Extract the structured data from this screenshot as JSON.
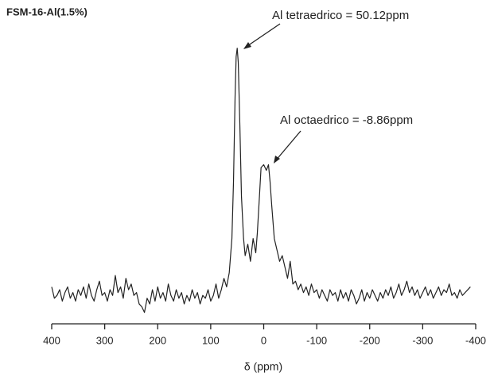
{
  "chart_data": {
    "type": "line",
    "title": "FSM-16-Al(1.5%)",
    "xlabel": "δ (ppm)",
    "color": "#222222",
    "annotations": [
      "Al tetraedrico = 50.12ppm",
      "Al octaedrico = -8.86ppm"
    ],
    "xlim": [
      400,
      -400
    ],
    "ylim": [
      0,
      100
    ],
    "xticks": [
      400,
      300,
      200,
      100,
      0,
      -100,
      -200,
      -300,
      -400
    ],
    "x": [
      400,
      395,
      390,
      385,
      380,
      375,
      370,
      365,
      360,
      355,
      350,
      345,
      340,
      335,
      330,
      325,
      320,
      315,
      310,
      305,
      300,
      295,
      290,
      285,
      280,
      275,
      270,
      265,
      260,
      255,
      250,
      245,
      240,
      235,
      230,
      225,
      220,
      215,
      210,
      205,
      200,
      195,
      190,
      185,
      180,
      175,
      170,
      165,
      160,
      155,
      150,
      145,
      140,
      135,
      130,
      125,
      120,
      115,
      110,
      105,
      100,
      95,
      90,
      85,
      80,
      75,
      70,
      65,
      60,
      57,
      54,
      52,
      50,
      48,
      45,
      42,
      38,
      35,
      30,
      25,
      20,
      15,
      12,
      8,
      5,
      0,
      -5,
      -9,
      -12,
      -15,
      -20,
      -25,
      -30,
      -35,
      -40,
      -45,
      -50,
      -55,
      -60,
      -65,
      -70,
      -75,
      -80,
      -85,
      -90,
      -95,
      -100,
      -105,
      -110,
      -115,
      -120,
      -125,
      -130,
      -135,
      -140,
      -145,
      -150,
      -155,
      -160,
      -165,
      -170,
      -175,
      -180,
      -185,
      -190,
      -195,
      -200,
      -205,
      -210,
      -215,
      -220,
      -225,
      -230,
      -235,
      -240,
      -245,
      -250,
      -255,
      -260,
      -265,
      -270,
      -275,
      -280,
      -285,
      -290,
      -295,
      -300,
      -305,
      -310,
      -315,
      -320,
      -325,
      -330,
      -335,
      -340,
      -345,
      -350,
      -355,
      -360,
      -365,
      -370,
      -375,
      -380,
      -385,
      -390
    ],
    "values": [
      13,
      9,
      10,
      12,
      8,
      11,
      13,
      9,
      11,
      8,
      12,
      10,
      13,
      9,
      14,
      10,
      8,
      12,
      15,
      10,
      11,
      8,
      12,
      10,
      17,
      11,
      13,
      9,
      16,
      12,
      14,
      10,
      11,
      7,
      6,
      4,
      9,
      7,
      12,
      8,
      13,
      9,
      11,
      8,
      14,
      10,
      8,
      12,
      9,
      11,
      7,
      10,
      8,
      12,
      9,
      11,
      7,
      10,
      9,
      12,
      8,
      10,
      14,
      9,
      12,
      16,
      13,
      18,
      30,
      50,
      80,
      94,
      97,
      92,
      70,
      45,
      30,
      24,
      28,
      22,
      30,
      25,
      32,
      45,
      55,
      56,
      54,
      56,
      50,
      42,
      30,
      26,
      22,
      24,
      20,
      16,
      22,
      14,
      15,
      12,
      14,
      11,
      13,
      10,
      14,
      11,
      12,
      9,
      12,
      10,
      8,
      12,
      10,
      11,
      8,
      12,
      9,
      11,
      8,
      12,
      10,
      7,
      9,
      12,
      8,
      11,
      9,
      12,
      10,
      8,
      11,
      9,
      12,
      10,
      13,
      9,
      11,
      14,
      10,
      12,
      15,
      11,
      13,
      10,
      12,
      9,
      11,
      13,
      10,
      12,
      9,
      11,
      13,
      10,
      12,
      11,
      14,
      10,
      11,
      9,
      12,
      10,
      11,
      12,
      13
    ]
  }
}
